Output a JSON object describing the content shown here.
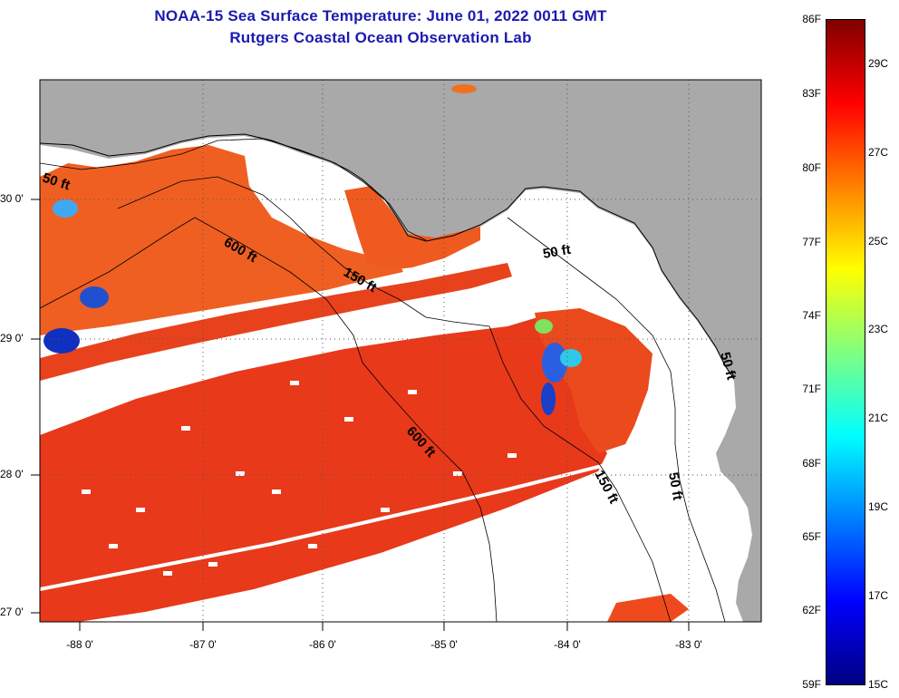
{
  "title_line1": "NOAA-15 Sea Surface Temperature:  June 01, 2022 0011 GMT",
  "title_line2": "Rutgers Coastal Ocean Observation Lab",
  "map": {
    "lat_labels": [
      "30 0'",
      "29 0'",
      "28 0'",
      "27 0'"
    ],
    "lon_labels": [
      "-88 0'",
      "-87 0'",
      "-86 0'",
      "-85 0'",
      "-84 0'",
      "-83 0'"
    ],
    "contour_labels": [
      "50 ft",
      "600 ft",
      "150 ft",
      "50 ft",
      "600 ft",
      "150 ft",
      "50 ft",
      "50 ft"
    ],
    "colors": {
      "land": "#a9a9a9",
      "no_data": "#ffffff",
      "warm_sst": "#ec3b14",
      "mid_sst": "#f07020"
    }
  },
  "colorbar": {
    "f_labels": [
      "86F",
      "83F",
      "80F",
      "77F",
      "74F",
      "71F",
      "68F",
      "65F",
      "62F",
      "59F"
    ],
    "c_labels": [
      "29C",
      "27C",
      "25C",
      "23C",
      "21C",
      "19C",
      "17C",
      "15C"
    ],
    "gradient": [
      "#00007f",
      "#0000ff",
      "#0080ff",
      "#00ffff",
      "#80ff80",
      "#ffff00",
      "#ff8000",
      "#ff0000",
      "#7f0000"
    ]
  }
}
